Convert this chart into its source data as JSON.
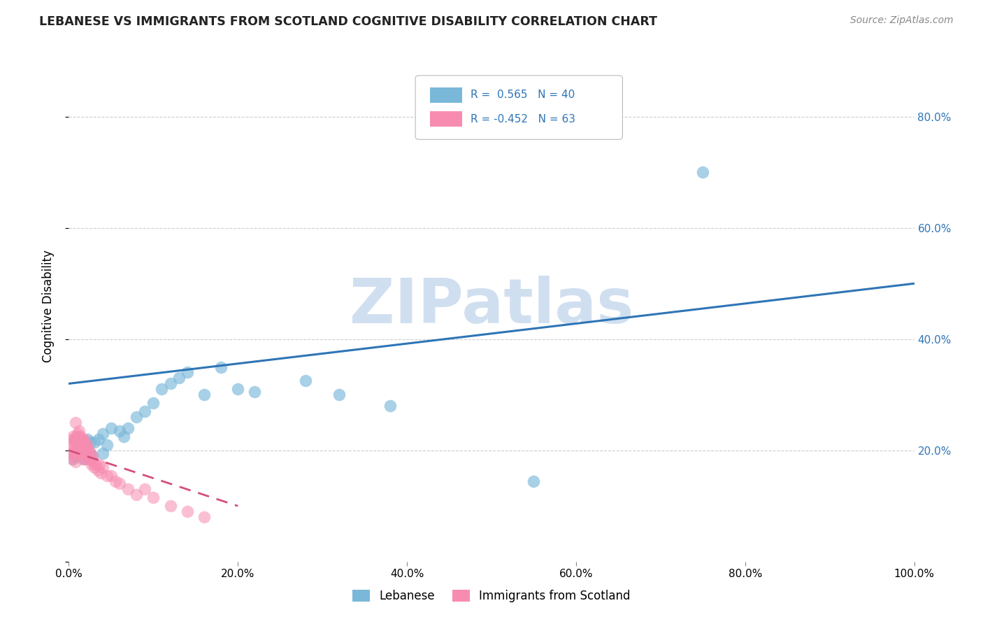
{
  "title": "LEBANESE VS IMMIGRANTS FROM SCOTLAND COGNITIVE DISABILITY CORRELATION CHART",
  "source": "Source: ZipAtlas.com",
  "ylabel": "Cognitive Disability",
  "xlabel": "",
  "xlim": [
    0.0,
    1.0
  ],
  "ylim": [
    0.0,
    0.92
  ],
  "yticks": [
    0.0,
    0.2,
    0.4,
    0.6,
    0.8
  ],
  "xticks": [
    0.0,
    0.2,
    0.4,
    0.6,
    0.8,
    1.0
  ],
  "blue_color": "#7ab8d9",
  "pink_color": "#f78cb0",
  "blue_line_color": "#2e75b6",
  "pink_line_color": "#d44f7a",
  "watermark_text": "ZIPatlas",
  "watermark_color": "#d0dff0",
  "background_color": "#ffffff",
  "grid_color": "#c8c8c8",
  "blue_R": 0.565,
  "blue_N": 40,
  "pink_R": -0.452,
  "pink_N": 63,
  "blue_line_x0": 0.0,
  "blue_line_y0": 0.32,
  "blue_line_x1": 1.0,
  "blue_line_y1": 0.5,
  "pink_line_x0": 0.0,
  "pink_line_y0": 0.2,
  "pink_line_x1": 0.2,
  "pink_line_y1": 0.1,
  "blue_scatter_x": [
    0.005,
    0.007,
    0.008,
    0.01,
    0.01,
    0.012,
    0.013,
    0.015,
    0.015,
    0.018,
    0.02,
    0.022,
    0.025,
    0.025,
    0.028,
    0.03,
    0.035,
    0.04,
    0.04,
    0.045,
    0.05,
    0.06,
    0.065,
    0.07,
    0.08,
    0.09,
    0.1,
    0.11,
    0.12,
    0.13,
    0.14,
    0.16,
    0.18,
    0.2,
    0.22,
    0.28,
    0.32,
    0.38,
    0.75,
    0.55
  ],
  "blue_scatter_y": [
    0.185,
    0.19,
    0.22,
    0.195,
    0.21,
    0.2,
    0.22,
    0.19,
    0.215,
    0.185,
    0.2,
    0.22,
    0.195,
    0.215,
    0.19,
    0.215,
    0.22,
    0.195,
    0.23,
    0.21,
    0.24,
    0.235,
    0.225,
    0.24,
    0.26,
    0.27,
    0.285,
    0.31,
    0.32,
    0.33,
    0.34,
    0.3,
    0.35,
    0.31,
    0.305,
    0.325,
    0.3,
    0.28,
    0.7,
    0.145
  ],
  "pink_scatter_x": [
    0.002,
    0.003,
    0.004,
    0.004,
    0.005,
    0.005,
    0.006,
    0.006,
    0.007,
    0.007,
    0.008,
    0.008,
    0.009,
    0.009,
    0.01,
    0.01,
    0.01,
    0.011,
    0.011,
    0.012,
    0.012,
    0.013,
    0.013,
    0.014,
    0.014,
    0.015,
    0.015,
    0.016,
    0.016,
    0.017,
    0.017,
    0.018,
    0.018,
    0.019,
    0.019,
    0.02,
    0.02,
    0.021,
    0.022,
    0.023,
    0.024,
    0.025,
    0.026,
    0.027,
    0.028,
    0.029,
    0.03,
    0.032,
    0.034,
    0.036,
    0.038,
    0.04,
    0.045,
    0.05,
    0.055,
    0.06,
    0.07,
    0.08,
    0.09,
    0.1,
    0.12,
    0.14,
    0.16
  ],
  "pink_scatter_y": [
    0.195,
    0.22,
    0.2,
    0.185,
    0.21,
    0.225,
    0.19,
    0.22,
    0.2,
    0.215,
    0.18,
    0.25,
    0.225,
    0.2,
    0.23,
    0.195,
    0.215,
    0.225,
    0.205,
    0.235,
    0.195,
    0.215,
    0.205,
    0.225,
    0.195,
    0.215,
    0.205,
    0.185,
    0.22,
    0.195,
    0.215,
    0.205,
    0.22,
    0.195,
    0.21,
    0.205,
    0.185,
    0.195,
    0.21,
    0.185,
    0.2,
    0.195,
    0.185,
    0.175,
    0.19,
    0.18,
    0.17,
    0.175,
    0.165,
    0.175,
    0.16,
    0.17,
    0.155,
    0.155,
    0.145,
    0.14,
    0.13,
    0.12,
    0.13,
    0.115,
    0.1,
    0.09,
    0.08
  ]
}
